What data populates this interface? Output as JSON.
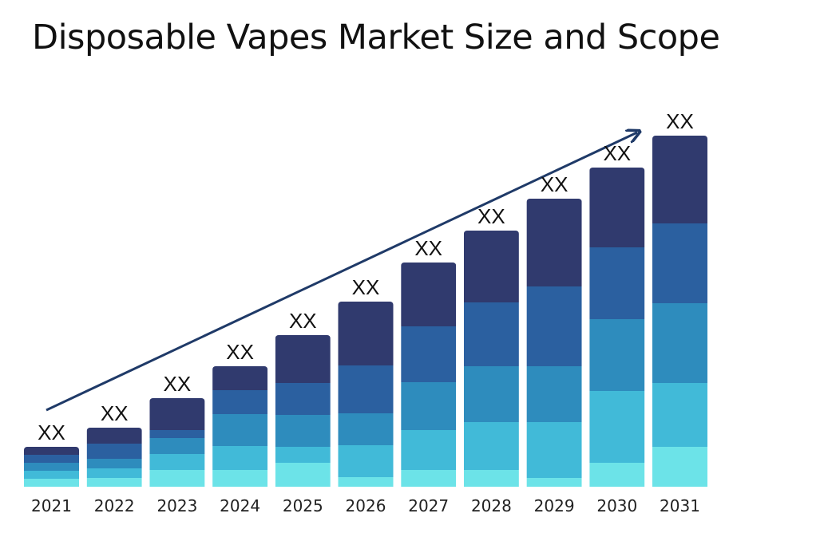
{
  "chart_data": {
    "type": "bar",
    "stacked": true,
    "title": "Disposable Vapes Market Size and Scope",
    "categories": [
      "2021",
      "2022",
      "2023",
      "2024",
      "2025",
      "2026",
      "2027",
      "2028",
      "2029",
      "2030",
      "2031"
    ],
    "data_labels": [
      "XX",
      "XX",
      "XX",
      "XX",
      "XX",
      "XX",
      "XX",
      "XX",
      "XX",
      "XX",
      "XX"
    ],
    "series": [
      {
        "color": "#6ce3e8",
        "values": [
          1.0,
          1.1,
          2.1,
          2.1,
          3.0,
          1.2,
          2.1,
          2.1,
          1.1,
          3.0,
          5.0
        ]
      },
      {
        "color": "#41bad8",
        "values": [
          1.0,
          1.2,
          2.0,
          3.0,
          2.0,
          4.0,
          5.0,
          6.0,
          7.0,
          9.0,
          8.0
        ]
      },
      {
        "color": "#2e8cbd",
        "values": [
          1.0,
          1.2,
          2.0,
          4.0,
          4.0,
          4.0,
          6.0,
          7.0,
          7.0,
          9.0,
          10.0
        ]
      },
      {
        "color": "#2b60a0",
        "values": [
          1.0,
          1.9,
          1.0,
          3.0,
          4.0,
          6.0,
          7.0,
          8.0,
          10.0,
          9.0,
          10.0
        ]
      },
      {
        "color": "#303a6e",
        "values": [
          1.0,
          2.0,
          4.0,
          3.0,
          6.0,
          8.0,
          8.0,
          9.0,
          11.0,
          10.0,
          11.0
        ]
      }
    ],
    "ylim": [
      0,
      44
    ],
    "grid": false,
    "legend": "none",
    "trend_arrow": true
  }
}
